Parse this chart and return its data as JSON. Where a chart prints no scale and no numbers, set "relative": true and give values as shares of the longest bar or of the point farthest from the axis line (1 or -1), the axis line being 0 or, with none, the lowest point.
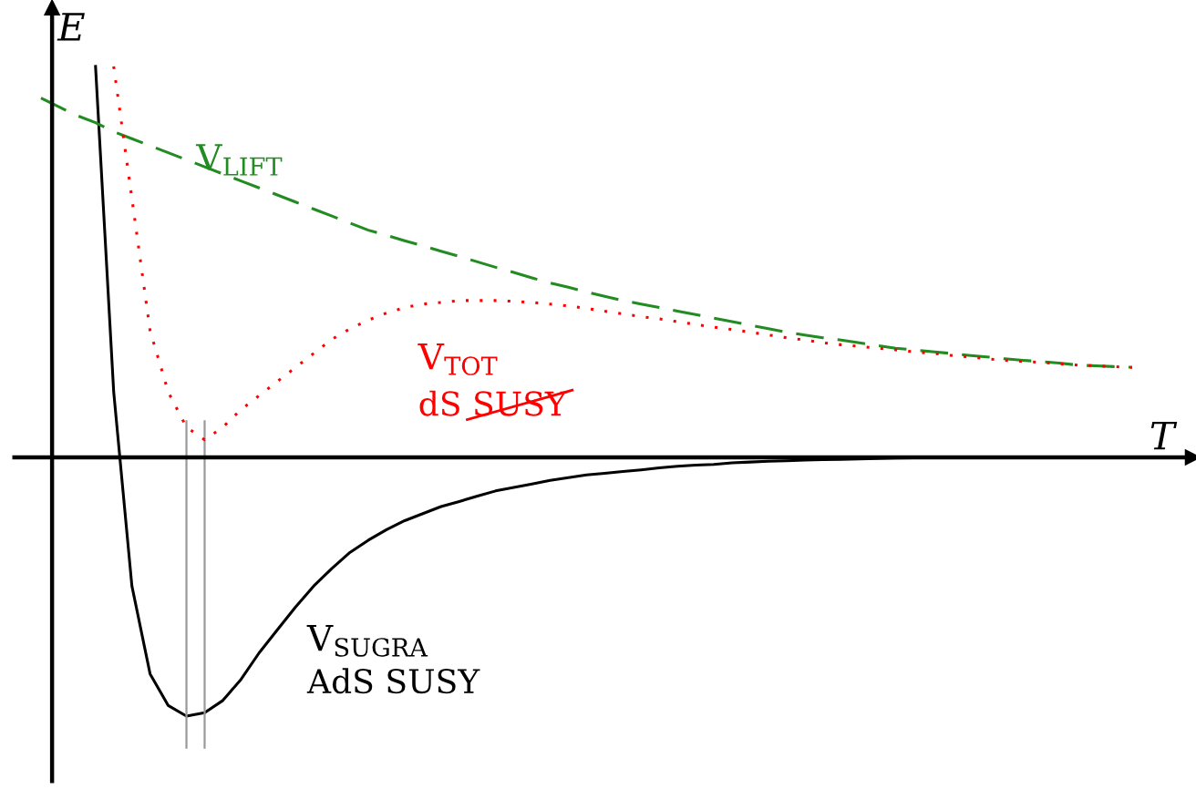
{
  "chart_data": {
    "type": "line",
    "relative": true,
    "xlabel": "T",
    "ylabel": "E",
    "marker": "none",
    "categories": [
      null,
      null,
      null,
      null,
      null,
      null,
      null,
      null,
      null,
      null,
      null,
      null,
      null,
      null,
      null,
      null,
      null,
      null,
      null,
      null,
      null,
      null,
      null,
      null,
      null,
      null,
      null,
      null,
      null,
      null,
      null,
      null,
      null,
      null,
      null,
      null,
      null,
      null,
      null,
      null,
      null,
      null,
      null,
      null,
      null,
      null,
      null,
      null,
      null,
      null,
      null,
      null,
      null,
      null,
      null,
      null,
      null,
      null,
      null,
      null,
      null
    ],
    "series": [
      {
        "name": "V$_{SUGRA}$",
        "color": "#000000",
        "line_style": "solid",
        "values": [
          null,
          null,
          null,
          1.0,
          0.167,
          -0.329,
          -0.554,
          -0.635,
          -0.662,
          -0.653,
          -0.622,
          -0.568,
          -0.5,
          -0.441,
          -0.383,
          -0.329,
          -0.284,
          -0.243,
          -0.212,
          -0.185,
          -0.162,
          -0.144,
          -0.126,
          -0.113,
          -0.099,
          -0.086,
          -0.077,
          -0.068,
          -0.059,
          -0.052,
          -0.045,
          -0.041,
          -0.036,
          -0.032,
          -0.027,
          -0.023,
          -0.02,
          -0.018,
          -0.014,
          -0.012,
          -0.01,
          -0.009,
          -0.007,
          -0.006,
          -0.005,
          -0.004,
          -0.003,
          -0.002,
          -0.001,
          0,
          0,
          0,
          0,
          0,
          0,
          0,
          0,
          0,
          0,
          0,
          0
        ]
      },
      {
        "name": "V$_{TOT}$",
        "color": "#ff0000",
        "line_style": "dotted",
        "values": [
          null,
          null,
          null,
          null,
          1.0,
          0.662,
          0.324,
          0.167,
          0.077,
          0.045,
          0.077,
          0.122,
          0.158,
          0.194,
          0.23,
          0.266,
          0.302,
          0.329,
          0.351,
          0.369,
          0.383,
          0.392,
          0.396,
          0.401,
          0.401,
          0.401,
          0.399,
          0.396,
          0.392,
          0.387,
          0.381,
          0.374,
          0.367,
          0.36,
          0.354,
          0.347,
          0.34,
          0.333,
          0.327,
          0.32,
          0.313,
          0.306,
          0.3,
          0.293,
          0.288,
          0.284,
          0.279,
          0.275,
          0.27,
          0.266,
          0.261,
          0.257,
          0.252,
          0.248,
          0.245,
          0.243,
          0.239,
          0.236,
          0.234,
          0.232,
          0.23
        ]
      },
      {
        "name": "V$_{LIFT}$",
        "color": "#228b22",
        "line_style": "dashed",
        "values": [
          0.919,
          0.896,
          0.874,
          0.856,
          0.833,
          0.815,
          0.797,
          0.779,
          0.761,
          0.743,
          0.725,
          0.707,
          0.689,
          0.671,
          0.653,
          0.635,
          0.617,
          0.599,
          0.581,
          0.568,
          0.554,
          0.541,
          0.527,
          0.514,
          0.5,
          0.486,
          0.473,
          0.459,
          0.446,
          0.435,
          0.423,
          0.412,
          0.401,
          0.392,
          0.383,
          0.374,
          0.365,
          0.356,
          0.347,
          0.338,
          0.329,
          0.32,
          0.313,
          0.306,
          0.3,
          0.293,
          0.286,
          0.279,
          0.275,
          0.27,
          0.266,
          0.261,
          0.257,
          0.252,
          0.248,
          0.245,
          0.241,
          0.236,
          0.234,
          0.232,
          0.23
        ]
      }
    ],
    "annotations": [
      "AdS SUSY",
      "dS SUSY"
    ]
  }
}
